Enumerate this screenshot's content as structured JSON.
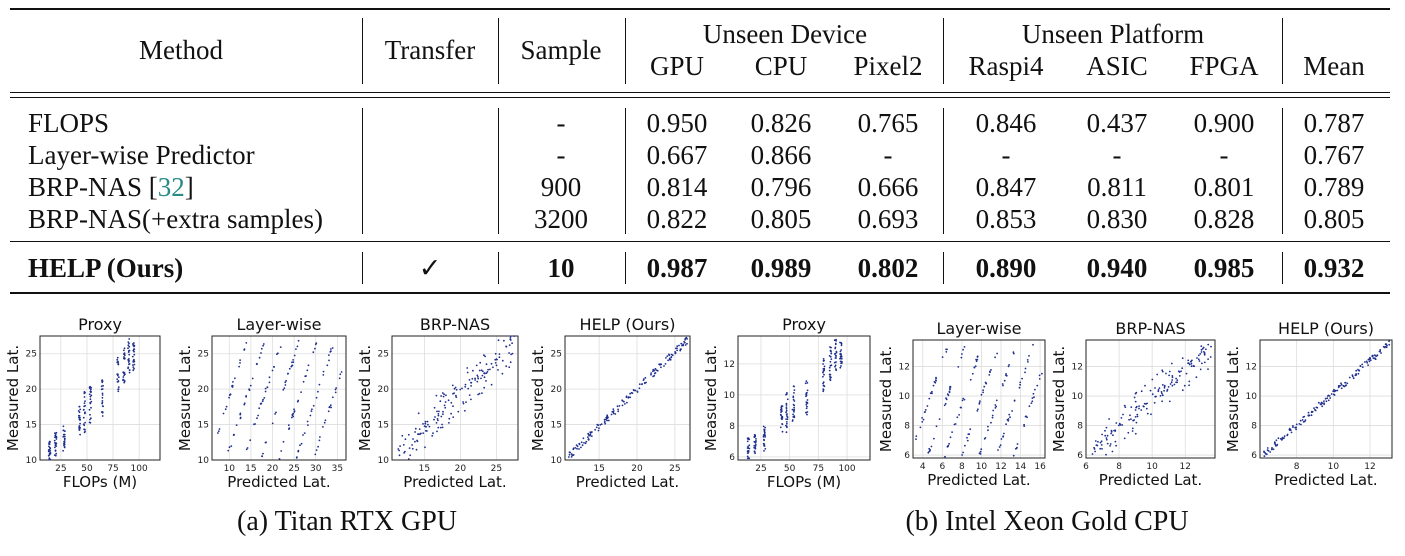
{
  "table": {
    "headers": {
      "method": "Method",
      "transfer": "Transfer",
      "sample": "Sample",
      "unseen_device": "Unseen Device",
      "unseen_platform": "Unseen Platform",
      "gpu": "GPU",
      "cpu": "CPU",
      "pixel2": "Pixel2",
      "raspi4": "Raspi4",
      "asic": "ASIC",
      "fpga": "FPGA",
      "mean": "Mean"
    },
    "rows": [
      {
        "method": "FLOPS",
        "cite": "",
        "cite_close": "",
        "transfer": "",
        "sample": "-",
        "gpu": "0.950",
        "cpu": "0.826",
        "pixel2": "0.765",
        "raspi4": "0.846",
        "asic": "0.437",
        "fpga": "0.900",
        "mean": "0.787"
      },
      {
        "method": "Layer-wise Predictor",
        "cite": "",
        "cite_close": "",
        "transfer": "",
        "sample": "-",
        "gpu": "0.667",
        "cpu": "0.866",
        "pixel2": "-",
        "raspi4": "-",
        "asic": "-",
        "fpga": "-",
        "mean": "0.767"
      },
      {
        "method": "BRP-NAS [",
        "cite": "32",
        "cite_close": "]",
        "transfer": "",
        "sample": "900",
        "gpu": "0.814",
        "cpu": "0.796",
        "pixel2": "0.666",
        "raspi4": "0.847",
        "asic": "0.811",
        "fpga": "0.801",
        "mean": "0.789"
      },
      {
        "method": "BRP-NAS(+extra samples)",
        "cite": "",
        "cite_close": "",
        "transfer": "",
        "sample": "3200",
        "gpu": "0.822",
        "cpu": "0.805",
        "pixel2": "0.693",
        "raspi4": "0.853",
        "asic": "0.830",
        "fpga": "0.828",
        "mean": "0.805"
      },
      {
        "method": "HELP (Ours)",
        "cite": "",
        "cite_close": "",
        "transfer": "✓",
        "sample": "10",
        "gpu": "0.987",
        "cpu": "0.989",
        "pixel2": "0.802",
        "raspi4": "0.890",
        "asic": "0.940",
        "fpga": "0.985",
        "mean": "0.932"
      }
    ]
  },
  "captions": {
    "a": "(a) Titan RTX GPU",
    "b": "(b) Intel Xeon Gold CPU"
  },
  "chart_data": [
    {
      "type": "scatter",
      "title": "Proxy",
      "xlabel": "FLOPs (M)",
      "ylabel": "Measured Lat.",
      "xticks": [
        "25",
        "50",
        "75",
        "100"
      ],
      "yticks": [
        "10",
        "15",
        "20",
        "25"
      ],
      "xlim": [
        5,
        120
      ],
      "ylim": [
        10,
        27.5
      ],
      "pattern": "flops",
      "seed": 11
    },
    {
      "type": "scatter",
      "title": "Layer-wise",
      "xlabel": "Predicted Lat.",
      "ylabel": "Measured Lat.",
      "xticks": [
        "10",
        "15",
        "20",
        "25",
        "30",
        "35"
      ],
      "yticks": [
        "10",
        "15",
        "20",
        "25"
      ],
      "xlim": [
        6,
        37
      ],
      "ylim": [
        10,
        27.5
      ],
      "pattern": "layer",
      "seed": 23
    },
    {
      "type": "scatter",
      "title": "BRP-NAS",
      "xlabel": "Predicted Lat.",
      "ylabel": "Measured Lat.",
      "xticks": [
        "15",
        "20",
        "25"
      ],
      "yticks": [
        "10",
        "15",
        "20",
        "25"
      ],
      "xlim": [
        10.5,
        28
      ],
      "ylim": [
        10,
        27.5
      ],
      "pattern": "brp",
      "seed": 37
    },
    {
      "type": "scatter",
      "title": "HELP (Ours)",
      "xlabel": "Predicted Lat.",
      "ylabel": "Measured Lat.",
      "xticks": [
        "15",
        "20",
        "25"
      ],
      "yticks": [
        "10",
        "15",
        "20",
        "25"
      ],
      "xlim": [
        10.5,
        27
      ],
      "ylim": [
        10,
        27.5
      ],
      "pattern": "help",
      "seed": 41
    },
    {
      "type": "scatter",
      "title": "Proxy",
      "xlabel": "FLOPs (M)",
      "ylabel": "Measured Lat.",
      "xticks": [
        "25",
        "50",
        "75",
        "100"
      ],
      "yticks": [
        "6",
        "8",
        "10",
        "12"
      ],
      "xlim": [
        5,
        120
      ],
      "ylim": [
        5.8,
        13.8
      ],
      "pattern": "flops",
      "seed": 53
    },
    {
      "type": "scatter",
      "title": "Layer-wise",
      "xlabel": "Predicted Lat.",
      "ylabel": "Measured Lat.",
      "xticks": [
        "4",
        "6",
        "8",
        "10",
        "12",
        "14",
        "16"
      ],
      "yticks": [
        "6",
        "8",
        "10",
        "12"
      ],
      "xlim": [
        3,
        16.5
      ],
      "ylim": [
        5.8,
        13.8
      ],
      "pattern": "layer",
      "seed": 67
    },
    {
      "type": "scatter",
      "title": "BRP-NAS",
      "xlabel": "Predicted Lat.",
      "ylabel": "Measured Lat.",
      "xticks": [
        "6",
        "8",
        "10",
        "12"
      ],
      "yticks": [
        "6",
        "8",
        "10",
        "12"
      ],
      "xlim": [
        6,
        13.8
      ],
      "ylim": [
        5.8,
        13.8
      ],
      "pattern": "brp",
      "seed": 71
    },
    {
      "type": "scatter",
      "title": "HELP (Ours)",
      "xlabel": "Predicted Lat.",
      "ylabel": "Measured Lat.",
      "xticks": [
        "8",
        "10",
        "12"
      ],
      "yticks": [
        "6",
        "8",
        "10",
        "12"
      ],
      "xlim": [
        6,
        13.2
      ],
      "ylim": [
        5.8,
        13.8
      ],
      "pattern": "help",
      "seed": 83
    }
  ],
  "colors": {
    "point": "#1f2f8f",
    "grid": "#dddddd",
    "axis": "#222222"
  }
}
